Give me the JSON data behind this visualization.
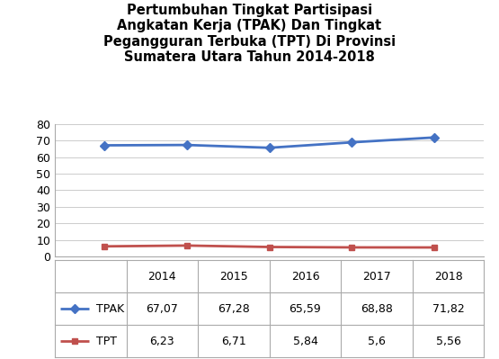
{
  "title": "Pertumbuhan Tingkat Partisipasi\nAngkatan Kerja (TPAK) Dan Tingkat\nPegangguran Terbuka (TPT) Di Provinsi\nSumatera Utara Tahun 2014-2018",
  "years": [
    2014,
    2015,
    2016,
    2017,
    2018
  ],
  "tpak": [
    67.07,
    67.28,
    65.59,
    68.88,
    71.82
  ],
  "tpt": [
    6.23,
    6.71,
    5.84,
    5.6,
    5.56
  ],
  "tpak_color": "#4472C4",
  "tpt_color": "#C0504D",
  "ylim": [
    0,
    80
  ],
  "yticks": [
    0,
    10,
    20,
    30,
    40,
    50,
    60,
    70,
    80
  ],
  "bg_color": "#FFFFFF",
  "table_row1_label": "TPAK",
  "table_row2_label": "TPT",
  "tpak_str": [
    "67,07",
    "67,28",
    "65,59",
    "68,88",
    "71,82"
  ],
  "tpt_str": [
    "6,23",
    "6,71",
    "5,84",
    "5,6",
    "5,56"
  ]
}
